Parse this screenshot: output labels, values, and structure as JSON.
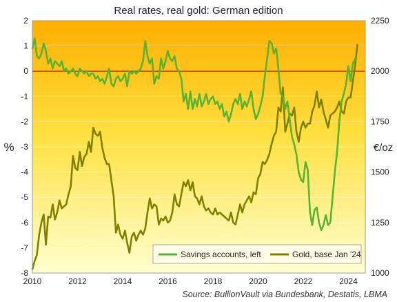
{
  "chart_data": {
    "type": "line",
    "title": "Real rates, real gold: German edition",
    "source": "Source: BullionVault via Bundesbank, Destatis, LBMA",
    "ylabel_left": "%",
    "ylabel_right": "€/oz",
    "xlim": [
      2010,
      2024.75
    ],
    "ylim_left": [
      -8,
      2
    ],
    "ylim_right": [
      1000,
      2250
    ],
    "x_ticks": [
      2010,
      2012,
      2014,
      2016,
      2018,
      2020,
      2022,
      2024
    ],
    "y_left_ticks": [
      -8,
      -7,
      -6,
      -5,
      -4,
      -3,
      -2,
      -1,
      0,
      1,
      2
    ],
    "y_right_ticks": [
      1000,
      1250,
      1500,
      1750,
      2000,
      2250
    ],
    "legend_position": "bottom-right",
    "reference_line": {
      "axis": "left",
      "value": 0,
      "color": "#c00000"
    },
    "colors": {
      "savings": "#5ab232",
      "gold": "#808000",
      "bg_top": "#ffae00",
      "bg_mid": "#ffe040",
      "bg_bottom": "#ffffd0",
      "zero_line": "#c00000"
    },
    "series": [
      {
        "name": "Savings accounts, left",
        "axis": "left",
        "color": "#5ab232",
        "points": [
          [
            2010.0,
            0.9
          ],
          [
            2010.1,
            1.3
          ],
          [
            2010.2,
            0.6
          ],
          [
            2010.3,
            0.5
          ],
          [
            2010.4,
            0.7
          ],
          [
            2010.5,
            1.1
          ],
          [
            2010.6,
            0.8
          ],
          [
            2010.7,
            0.3
          ],
          [
            2010.8,
            0.5
          ],
          [
            2010.9,
            0.1
          ],
          [
            2011.0,
            0.4
          ],
          [
            2011.1,
            0.3
          ],
          [
            2011.2,
            0.2
          ],
          [
            2011.3,
            0.4
          ],
          [
            2011.4,
            0.0
          ],
          [
            2011.5,
            0.1
          ],
          [
            2011.6,
            -0.1
          ],
          [
            2011.7,
            0.0
          ],
          [
            2011.8,
            0.1
          ],
          [
            2011.9,
            -0.1
          ],
          [
            2012.0,
            -0.2
          ],
          [
            2012.1,
            0.1
          ],
          [
            2012.2,
            0.0
          ],
          [
            2012.3,
            -0.1
          ],
          [
            2012.4,
            0.0
          ],
          [
            2012.5,
            -0.2
          ],
          [
            2012.6,
            -0.1
          ],
          [
            2012.7,
            -0.1
          ],
          [
            2012.8,
            -0.3
          ],
          [
            2012.9,
            -0.2
          ],
          [
            2013.0,
            -0.4
          ],
          [
            2013.1,
            -0.3
          ],
          [
            2013.2,
            -0.5
          ],
          [
            2013.3,
            -0.2
          ],
          [
            2013.4,
            0.1
          ],
          [
            2013.5,
            -0.5
          ],
          [
            2013.6,
            -0.6
          ],
          [
            2013.7,
            -0.3
          ],
          [
            2013.8,
            -0.2
          ],
          [
            2013.9,
            -0.4
          ],
          [
            2014.0,
            -0.3
          ],
          [
            2014.1,
            -0.1
          ],
          [
            2014.2,
            -0.6
          ],
          [
            2014.3,
            0.0
          ],
          [
            2014.4,
            -0.1
          ],
          [
            2014.5,
            0.0
          ],
          [
            2014.6,
            -0.1
          ],
          [
            2014.7,
            0.0
          ],
          [
            2014.8,
            0.1
          ],
          [
            2014.9,
            0.4
          ],
          [
            2015.0,
            1.2
          ],
          [
            2015.1,
            0.6
          ],
          [
            2015.2,
            0.3
          ],
          [
            2015.3,
            0.5
          ],
          [
            2015.4,
            -0.5
          ],
          [
            2015.5,
            -0.2
          ],
          [
            2015.6,
            -0.3
          ],
          [
            2015.7,
            0.5
          ],
          [
            2015.8,
            0.1
          ],
          [
            2015.9,
            0.4
          ],
          [
            2016.0,
            0.8
          ],
          [
            2016.1,
            0.5
          ],
          [
            2016.2,
            0.4
          ],
          [
            2016.3,
            0.6
          ],
          [
            2016.4,
            0.1
          ],
          [
            2016.5,
            0.0
          ],
          [
            2016.6,
            -0.3
          ],
          [
            2016.7,
            -1.2
          ],
          [
            2016.8,
            -0.9
          ],
          [
            2016.9,
            -1.5
          ],
          [
            2017.0,
            -0.8
          ],
          [
            2017.1,
            -1.5
          ],
          [
            2017.2,
            -1.1
          ],
          [
            2017.3,
            -1.4
          ],
          [
            2017.4,
            -0.9
          ],
          [
            2017.5,
            -1.4
          ],
          [
            2017.6,
            -1.2
          ],
          [
            2017.7,
            -0.9
          ],
          [
            2017.8,
            -1.3
          ],
          [
            2017.9,
            -1.1
          ],
          [
            2018.0,
            -1.0
          ],
          [
            2018.1,
            -1.3
          ],
          [
            2018.2,
            -1.2
          ],
          [
            2018.3,
            -1.5
          ],
          [
            2018.4,
            -1.3
          ],
          [
            2018.5,
            -1.8
          ],
          [
            2018.6,
            -1.6
          ],
          [
            2018.7,
            -2.0
          ],
          [
            2018.8,
            -1.7
          ],
          [
            2018.9,
            -1.3
          ],
          [
            2019.0,
            -1.1
          ],
          [
            2019.1,
            -1.3
          ],
          [
            2019.2,
            -0.9
          ],
          [
            2019.3,
            -1.5
          ],
          [
            2019.4,
            -1.2
          ],
          [
            2019.5,
            -1.4
          ],
          [
            2019.6,
            -1.1
          ],
          [
            2019.7,
            -0.8
          ],
          [
            2019.8,
            -1.5
          ],
          [
            2019.9,
            -1.9
          ],
          [
            2020.0,
            -1.7
          ],
          [
            2020.1,
            -1.4
          ],
          [
            2020.2,
            -1.0
          ],
          [
            2020.3,
            -0.2
          ],
          [
            2020.4,
            0.5
          ],
          [
            2020.5,
            1.2
          ],
          [
            2020.6,
            1.1
          ],
          [
            2020.7,
            0.7
          ],
          [
            2020.8,
            0.9
          ],
          [
            2020.9,
            0.1
          ],
          [
            2021.0,
            -0.9
          ],
          [
            2021.1,
            -1.0
          ],
          [
            2021.2,
            -1.5
          ],
          [
            2021.3,
            -1.2
          ],
          [
            2021.4,
            -1.9
          ],
          [
            2021.5,
            -2.6
          ],
          [
            2021.6,
            -2.9
          ],
          [
            2021.7,
            -3.3
          ],
          [
            2021.8,
            -4.0
          ],
          [
            2021.9,
            -4.3
          ],
          [
            2022.0,
            -4.4
          ],
          [
            2022.1,
            -3.6
          ],
          [
            2022.2,
            -3.9
          ],
          [
            2022.3,
            -5.6
          ],
          [
            2022.4,
            -6.1
          ],
          [
            2022.5,
            -5.5
          ],
          [
            2022.6,
            -5.4
          ],
          [
            2022.7,
            -6.0
          ],
          [
            2022.8,
            -6.3
          ],
          [
            2022.9,
            -6.1
          ],
          [
            2023.0,
            -5.7
          ],
          [
            2023.1,
            -6.1
          ],
          [
            2023.2,
            -6.0
          ],
          [
            2023.3,
            -5.0
          ],
          [
            2023.4,
            -4.0
          ],
          [
            2023.5,
            -3.2
          ],
          [
            2023.6,
            -2.0
          ],
          [
            2023.7,
            -1.2
          ],
          [
            2023.8,
            -0.9
          ],
          [
            2023.9,
            -0.5
          ],
          [
            2024.0,
            0.2
          ],
          [
            2024.1,
            -0.4
          ],
          [
            2024.2,
            0.3
          ],
          [
            2024.3,
            0.5
          ]
        ]
      },
      {
        "name": "Gold, base Jan '24",
        "axis": "right",
        "color": "#808000",
        "points": [
          [
            2010.0,
            1020
          ],
          [
            2010.1,
            1060
          ],
          [
            2010.2,
            1090
          ],
          [
            2010.3,
            1190
          ],
          [
            2010.4,
            1250
          ],
          [
            2010.5,
            1290
          ],
          [
            2010.6,
            1140
          ],
          [
            2010.7,
            1280
          ],
          [
            2010.8,
            1275
          ],
          [
            2010.9,
            1340
          ],
          [
            2011.0,
            1265
          ],
          [
            2011.1,
            1300
          ],
          [
            2011.2,
            1360
          ],
          [
            2011.3,
            1320
          ],
          [
            2011.4,
            1330
          ],
          [
            2011.5,
            1340
          ],
          [
            2011.6,
            1390
          ],
          [
            2011.7,
            1430
          ],
          [
            2011.8,
            1580
          ],
          [
            2011.9,
            1520
          ],
          [
            2012.0,
            1510
          ],
          [
            2012.1,
            1600
          ],
          [
            2012.2,
            1530
          ],
          [
            2012.3,
            1575
          ],
          [
            2012.4,
            1590
          ],
          [
            2012.5,
            1650
          ],
          [
            2012.6,
            1600
          ],
          [
            2012.7,
            1720
          ],
          [
            2012.8,
            1690
          ],
          [
            2012.9,
            1680
          ],
          [
            2013.0,
            1700
          ],
          [
            2013.1,
            1620
          ],
          [
            2013.2,
            1570
          ],
          [
            2013.3,
            1540
          ],
          [
            2013.4,
            1540
          ],
          [
            2013.5,
            1460
          ],
          [
            2013.6,
            1380
          ],
          [
            2013.7,
            1200
          ],
          [
            2013.8,
            1240
          ],
          [
            2013.9,
            1190
          ],
          [
            2014.0,
            1170
          ],
          [
            2014.1,
            1210
          ],
          [
            2014.2,
            1150
          ],
          [
            2014.3,
            1100
          ],
          [
            2014.4,
            1180
          ],
          [
            2014.5,
            1200
          ],
          [
            2014.6,
            1160
          ],
          [
            2014.7,
            1190
          ],
          [
            2014.8,
            1210
          ],
          [
            2014.9,
            1190
          ],
          [
            2015.0,
            1220
          ],
          [
            2015.1,
            1300
          ],
          [
            2015.2,
            1370
          ],
          [
            2015.3,
            1320
          ],
          [
            2015.4,
            1340
          ],
          [
            2015.5,
            1330
          ],
          [
            2015.6,
            1240
          ],
          [
            2015.7,
            1270
          ],
          [
            2015.8,
            1260
          ],
          [
            2015.9,
            1280
          ],
          [
            2016.0,
            1250
          ],
          [
            2016.1,
            1260
          ],
          [
            2016.2,
            1300
          ],
          [
            2016.3,
            1390
          ],
          [
            2016.4,
            1340
          ],
          [
            2016.5,
            1330
          ],
          [
            2016.6,
            1390
          ],
          [
            2016.7,
            1450
          ],
          [
            2016.8,
            1430
          ],
          [
            2016.9,
            1460
          ],
          [
            2017.0,
            1410
          ],
          [
            2017.1,
            1450
          ],
          [
            2017.2,
            1380
          ],
          [
            2017.3,
            1370
          ],
          [
            2017.4,
            1340
          ],
          [
            2017.5,
            1380
          ],
          [
            2017.6,
            1330
          ],
          [
            2017.7,
            1310
          ],
          [
            2017.8,
            1320
          ],
          [
            2017.9,
            1300
          ],
          [
            2018.0,
            1290
          ],
          [
            2018.1,
            1320
          ],
          [
            2018.2,
            1290
          ],
          [
            2018.3,
            1300
          ],
          [
            2018.4,
            1290
          ],
          [
            2018.5,
            1280
          ],
          [
            2018.6,
            1270
          ],
          [
            2018.7,
            1260
          ],
          [
            2018.8,
            1300
          ],
          [
            2018.9,
            1250
          ],
          [
            2019.0,
            1240
          ],
          [
            2019.1,
            1290
          ],
          [
            2019.2,
            1340
          ],
          [
            2019.3,
            1300
          ],
          [
            2019.4,
            1340
          ],
          [
            2019.5,
            1360
          ],
          [
            2019.6,
            1380
          ],
          [
            2019.7,
            1350
          ],
          [
            2019.8,
            1400
          ],
          [
            2019.9,
            1390
          ],
          [
            2020.0,
            1470
          ],
          [
            2020.1,
            1490
          ],
          [
            2020.2,
            1550
          ],
          [
            2020.3,
            1540
          ],
          [
            2020.4,
            1560
          ],
          [
            2020.5,
            1590
          ],
          [
            2020.6,
            1640
          ],
          [
            2020.7,
            1680
          ],
          [
            2020.8,
            1700
          ],
          [
            2020.9,
            1820
          ],
          [
            2021.0,
            1800
          ],
          [
            2021.1,
            1920
          ],
          [
            2021.2,
            1700
          ],
          [
            2021.3,
            1740
          ],
          [
            2021.4,
            1790
          ],
          [
            2021.5,
            1780
          ],
          [
            2021.6,
            1820
          ],
          [
            2021.7,
            1700
          ],
          [
            2021.8,
            1650
          ],
          [
            2021.9,
            1720
          ],
          [
            2022.0,
            1750
          ],
          [
            2022.1,
            1720
          ],
          [
            2022.2,
            1740
          ],
          [
            2022.3,
            1740
          ],
          [
            2022.4,
            1800
          ],
          [
            2022.5,
            1830
          ],
          [
            2022.6,
            1900
          ],
          [
            2022.7,
            1820
          ],
          [
            2022.8,
            1860
          ],
          [
            2022.9,
            1800
          ],
          [
            2023.0,
            1760
          ],
          [
            2023.1,
            1720
          ],
          [
            2023.2,
            1780
          ],
          [
            2023.3,
            1790
          ],
          [
            2023.4,
            1800
          ],
          [
            2023.5,
            1820
          ],
          [
            2023.6,
            1850
          ],
          [
            2023.7,
            1800
          ],
          [
            2023.8,
            1790
          ],
          [
            2023.9,
            1850
          ],
          [
            2024.0,
            1870
          ],
          [
            2024.1,
            1870
          ],
          [
            2024.2,
            1950
          ],
          [
            2024.3,
            2030
          ],
          [
            2024.4,
            2130
          ]
        ]
      }
    ]
  }
}
